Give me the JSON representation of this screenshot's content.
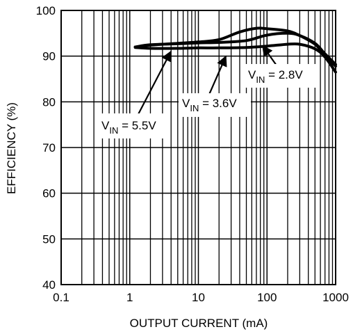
{
  "chart_data": {
    "type": "line",
    "xlabel": "OUTPUT CURRENT (mA)",
    "ylabel": "EFFICIENCY (%)",
    "xscale": "log",
    "xlim": [
      0.1,
      1000
    ],
    "ylim": [
      40,
      100
    ],
    "grid": true,
    "x_ticks": [
      "0.1",
      "1",
      "10",
      "100",
      "1000"
    ],
    "y_ticks": [
      "40",
      "50",
      "60",
      "70",
      "80",
      "90",
      "100"
    ],
    "series": [
      {
        "name": "VIN = 2.8V",
        "x": [
          1.2,
          2,
          5,
          10,
          20,
          40,
          70,
          100,
          200,
          300,
          500,
          700,
          1000
        ],
        "y": [
          92,
          92.4,
          92.8,
          93.1,
          93.6,
          95.3,
          96.1,
          96,
          95.5,
          94.5,
          92.6,
          90.2,
          87.8
        ]
      },
      {
        "name": "VIN = 3.6V",
        "x": [
          1.2,
          2,
          5,
          10,
          20,
          50,
          100,
          200,
          300,
          500,
          700,
          1000
        ],
        "y": [
          92,
          92.5,
          92.7,
          92.9,
          93,
          93.4,
          94.6,
          95,
          94.5,
          92.8,
          90.5,
          88.2
        ]
      },
      {
        "name": "VIN = 5.5V",
        "x": [
          1.2,
          2,
          5,
          10,
          20,
          50,
          100,
          200,
          300,
          500,
          700,
          1000
        ],
        "y": [
          91.9,
          91.7,
          91.7,
          91.8,
          91.8,
          91.9,
          92.2,
          92.6,
          92.6,
          91.6,
          89.8,
          86.5
        ]
      }
    ],
    "annotations": [
      {
        "main": "V",
        "sub": "IN",
        "rest": " = 2.8V"
      },
      {
        "main": "V",
        "sub": "IN",
        "rest": " = 3.6V"
      },
      {
        "main": "V",
        "sub": "IN",
        "rest": " = 5.5V"
      }
    ]
  }
}
